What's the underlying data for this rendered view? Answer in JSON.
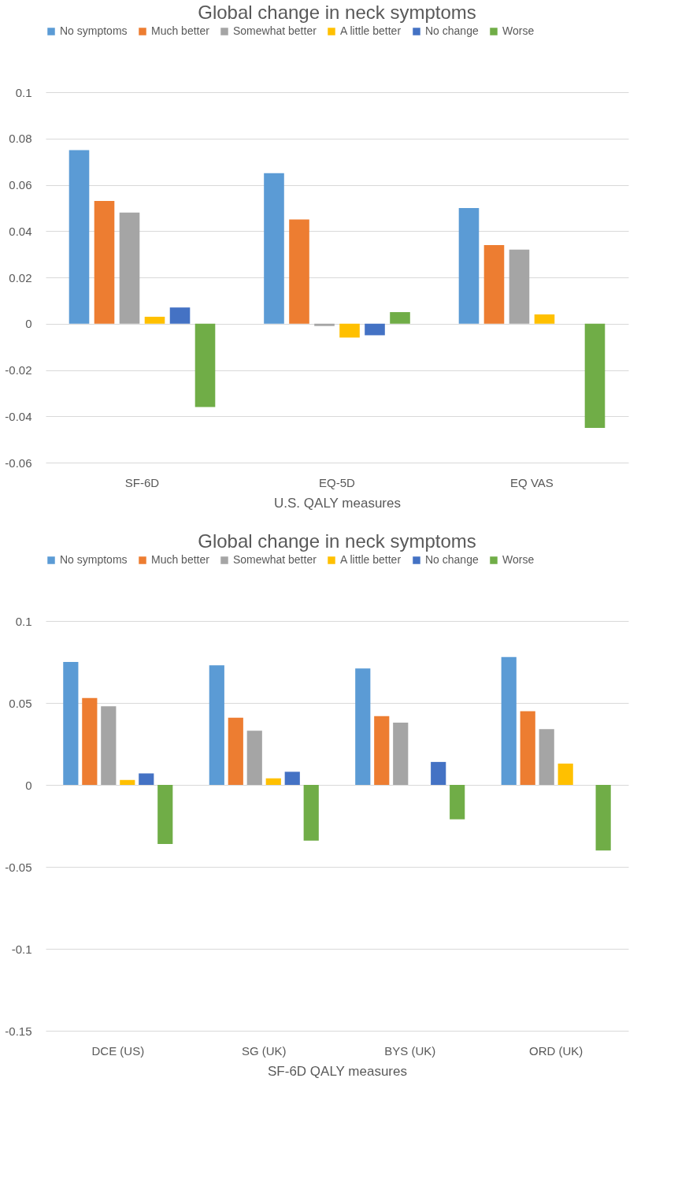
{
  "chart_data": [
    {
      "type": "bar",
      "title": "Global change in neck symptoms",
      "xlabel": "U.S. QALY measures",
      "categories": [
        "SF-6D",
        "EQ-5D",
        "EQ VAS"
      ],
      "series": [
        {
          "name": "No symptoms",
          "color": "#5b9bd5",
          "values": [
            0.075,
            0.065,
            0.05
          ]
        },
        {
          "name": "Much better",
          "color": "#ed7d31",
          "values": [
            0.053,
            0.045,
            0.034
          ]
        },
        {
          "name": "Somewhat better",
          "color": "#a5a5a5",
          "values": [
            0.048,
            -0.001,
            0.032
          ]
        },
        {
          "name": "A little better",
          "color": "#ffc000",
          "values": [
            0.003,
            -0.006,
            0.004
          ]
        },
        {
          "name": "No change",
          "color": "#4472c4",
          "values": [
            0.007,
            -0.005,
            null
          ]
        },
        {
          "name": "Worse",
          "color": "#70ad47",
          "values": [
            -0.036,
            0.005,
            -0.045
          ]
        }
      ],
      "ylim": [
        -0.06,
        0.1
      ],
      "yticks": [
        -0.06,
        -0.04,
        -0.02,
        0,
        0.02,
        0.04,
        0.06,
        0.08,
        0.1
      ],
      "grid": "y",
      "legend": "top"
    },
    {
      "type": "bar",
      "title": "Global change in neck symptoms",
      "xlabel": "SF-6D QALY measures",
      "categories": [
        "DCE (US)",
        "SG (UK)",
        "BYS (UK)",
        "ORD (UK)"
      ],
      "series": [
        {
          "name": "No symptoms",
          "color": "#5b9bd5",
          "values": [
            0.075,
            0.073,
            0.071,
            0.078
          ]
        },
        {
          "name": "Much better",
          "color": "#ed7d31",
          "values": [
            0.053,
            0.041,
            0.042,
            0.045
          ]
        },
        {
          "name": "Somewhat better",
          "color": "#a5a5a5",
          "values": [
            0.048,
            0.033,
            0.038,
            0.034
          ]
        },
        {
          "name": "A little better",
          "color": "#ffc000",
          "values": [
            0.003,
            0.004,
            null,
            0.013
          ]
        },
        {
          "name": "No change",
          "color": "#4472c4",
          "values": [
            0.007,
            0.008,
            0.014,
            null
          ]
        },
        {
          "name": "Worse",
          "color": "#70ad47",
          "values": [
            -0.036,
            -0.034,
            -0.021,
            -0.04
          ]
        }
      ],
      "ylim": [
        -0.15,
        0.1
      ],
      "yticks": [
        -0.15,
        -0.1,
        -0.05,
        0,
        0.05,
        0.1
      ],
      "grid": "y",
      "legend": "top"
    }
  ]
}
